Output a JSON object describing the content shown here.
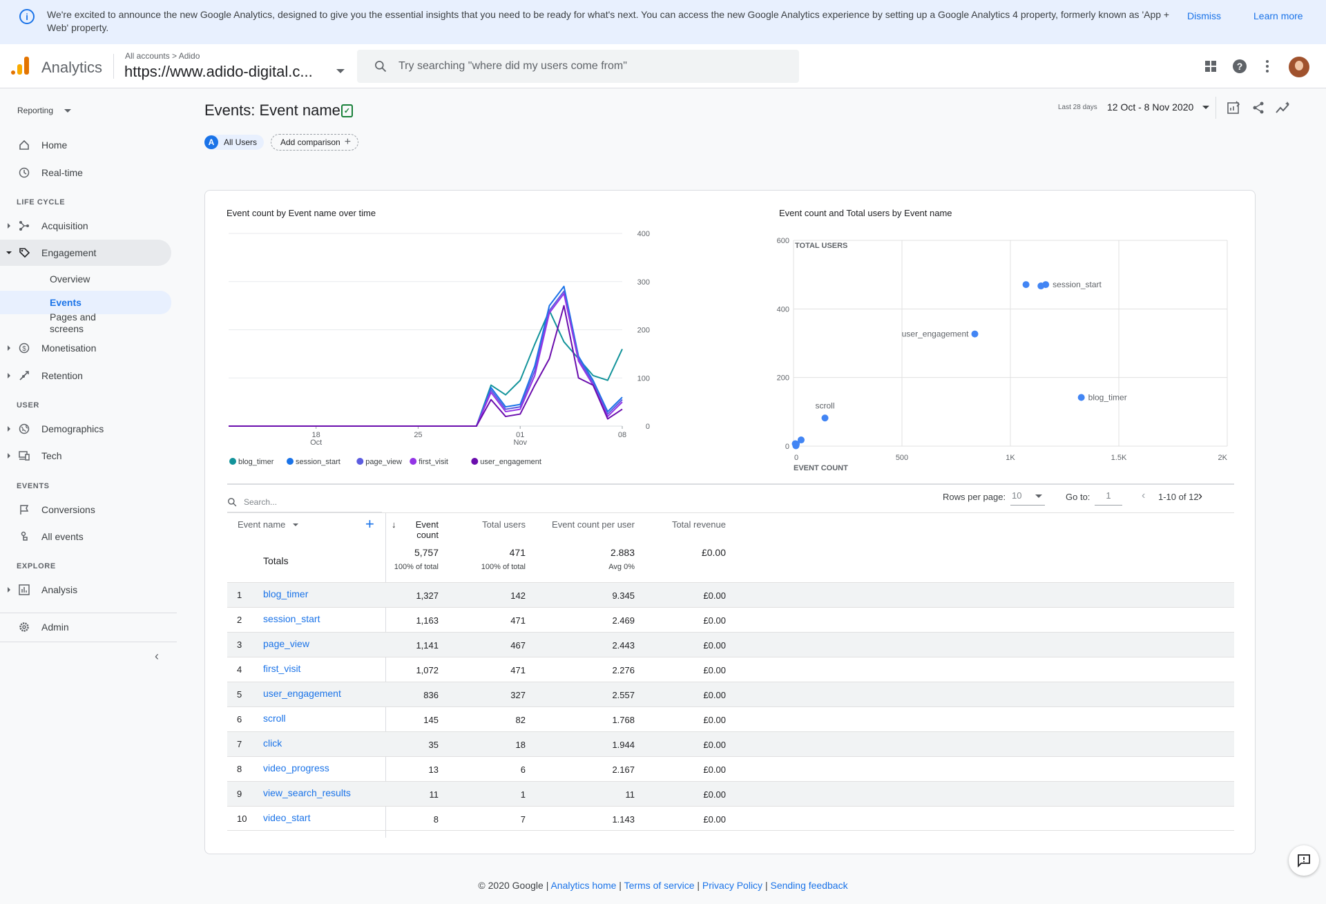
{
  "banner": {
    "message": "We're excited to announce the new Google Analytics, designed to give you the essential insights that you need to be ready for what's next. You can access the new Google Analytics experience by setting up a Google Analytics 4 property, formerly known as 'App + Web' property.",
    "dismiss": "Dismiss",
    "learn_more": "Learn more"
  },
  "topbar": {
    "app_name": "Analytics",
    "breadcrumb": "All accounts > Adido",
    "property": "https://www.adido-digital.c...",
    "search_placeholder": "Try searching \"where did my users come from\""
  },
  "sidebar": {
    "reporting": "Reporting",
    "home": "Home",
    "realtime": "Real-time",
    "section_lifecycle": "LIFE CYCLE",
    "acquisition": "Acquisition",
    "engagement": "Engagement",
    "overview": "Overview",
    "events": "Events",
    "pages_and_screens": "Pages and screens",
    "monetisation": "Monetisation",
    "retention": "Retention",
    "section_user": "USER",
    "demographics": "Demographics",
    "tech": "Tech",
    "section_events": "EVENTS",
    "conversions": "Conversions",
    "all_events": "All events",
    "section_explore": "EXPLORE",
    "analysis": "Analysis",
    "admin": "Admin"
  },
  "header": {
    "title": "Events: Event name",
    "segment_letter": "A",
    "segment": "All Users",
    "add_comparison": "Add comparison",
    "date_prefix": "Last 28 days",
    "date_range": "12 Oct - 8 Nov 2020"
  },
  "chart_data": [
    {
      "type": "line",
      "title": "Event count by Event name over time",
      "x": [
        "12 Oct",
        "13 Oct",
        "14 Oct",
        "15 Oct",
        "16 Oct",
        "17 Oct",
        "18 Oct",
        "19 Oct",
        "20 Oct",
        "21 Oct",
        "22 Oct",
        "23 Oct",
        "24 Oct",
        "25 Oct",
        "26 Oct",
        "27 Oct",
        "28 Oct",
        "29 Oct",
        "30 Oct",
        "31 Oct",
        "01 Nov",
        "02 Nov",
        "03 Nov",
        "04 Nov",
        "05 Nov",
        "06 Nov",
        "07 Nov",
        "08 Nov"
      ],
      "x_ticks": [
        {
          "label": "18",
          "sub": "Oct",
          "index": 6
        },
        {
          "label": "25",
          "sub": "",
          "index": 13
        },
        {
          "label": "01",
          "sub": "Nov",
          "index": 20
        },
        {
          "label": "08",
          "sub": "",
          "index": 27
        }
      ],
      "ylim": [
        0,
        400
      ],
      "y_ticks": [
        0,
        100,
        200,
        300,
        400
      ],
      "series": [
        {
          "name": "blog_timer",
          "color": "#12939a",
          "values": [
            0,
            0,
            0,
            0,
            0,
            0,
            0,
            0,
            0,
            0,
            0,
            0,
            0,
            0,
            0,
            0,
            0,
            0,
            85,
            65,
            95,
            170,
            240,
            175,
            140,
            105,
            95,
            160
          ]
        },
        {
          "name": "session_start",
          "color": "#1a73e8",
          "values": [
            0,
            0,
            0,
            0,
            0,
            0,
            0,
            0,
            0,
            0,
            0,
            0,
            0,
            0,
            0,
            0,
            0,
            0,
            80,
            40,
            45,
            125,
            250,
            290,
            145,
            95,
            30,
            60
          ]
        },
        {
          "name": "page_view",
          "color": "#5c5ce0",
          "values": [
            0,
            0,
            0,
            0,
            0,
            0,
            0,
            0,
            0,
            0,
            0,
            0,
            0,
            0,
            0,
            0,
            0,
            0,
            75,
            35,
            40,
            115,
            240,
            280,
            140,
            90,
            25,
            55
          ]
        },
        {
          "name": "first_visit",
          "color": "#9334e6",
          "values": [
            0,
            0,
            0,
            0,
            0,
            0,
            0,
            0,
            0,
            0,
            0,
            0,
            0,
            0,
            0,
            0,
            0,
            0,
            70,
            30,
            35,
            105,
            235,
            275,
            135,
            85,
            20,
            50
          ]
        },
        {
          "name": "user_engagement",
          "color": "#6a0dad",
          "values": [
            0,
            0,
            0,
            0,
            0,
            0,
            0,
            0,
            0,
            0,
            0,
            0,
            0,
            0,
            0,
            0,
            0,
            0,
            55,
            20,
            25,
            85,
            140,
            250,
            100,
            85,
            15,
            35
          ]
        }
      ]
    },
    {
      "type": "scatter",
      "title": "Event count and Total users by Event name",
      "xlabel": "EVENT COUNT",
      "ylabel": "TOTAL USERS",
      "xlim": [
        0,
        2000
      ],
      "ylim": [
        0,
        600
      ],
      "x_ticks": [
        "0",
        "500",
        "1K",
        "1.5K",
        "2K"
      ],
      "x_tick_values": [
        0,
        500,
        1000,
        1500,
        2000
      ],
      "y_ticks": [
        0,
        200,
        400,
        600
      ],
      "points": [
        {
          "label": "blog_timer",
          "x": 1327,
          "y": 142
        },
        {
          "label": "session_start",
          "x": 1163,
          "y": 471
        },
        {
          "label": "",
          "x": 1141,
          "y": 467
        },
        {
          "label": "",
          "x": 1072,
          "y": 471
        },
        {
          "label": "user_engagement",
          "x": 836,
          "y": 327
        },
        {
          "label": "scroll",
          "x": 145,
          "y": 82
        },
        {
          "label": "",
          "x": 35,
          "y": 18
        },
        {
          "label": "",
          "x": 13,
          "y": 6
        },
        {
          "label": "",
          "x": 11,
          "y": 1
        },
        {
          "label": "",
          "x": 8,
          "y": 7
        }
      ],
      "color": "#4285f4"
    }
  ],
  "table": {
    "search_placeholder": "Search...",
    "rows_per_page_label": "Rows per page:",
    "rows_per_page": "10",
    "goto_label": "Go to:",
    "goto_value": "1",
    "range": "1-10 of 12",
    "columns": {
      "event_name": "Event name",
      "event_count": "Event count",
      "total_users": "Total users",
      "per_user": "Event count per user",
      "revenue": "Total revenue"
    },
    "totals": {
      "label": "Totals",
      "event_count": "5,757",
      "event_count_sub": "100% of total",
      "total_users": "471",
      "total_users_sub": "100% of total",
      "per_user": "2.883",
      "per_user_sub": "Avg 0%",
      "revenue": "£0.00"
    },
    "rows": [
      {
        "n": "1",
        "name": "blog_timer",
        "count": "1,327",
        "users": "142",
        "per": "9.345",
        "rev": "£0.00"
      },
      {
        "n": "2",
        "name": "session_start",
        "count": "1,163",
        "users": "471",
        "per": "2.469",
        "rev": "£0.00"
      },
      {
        "n": "3",
        "name": "page_view",
        "count": "1,141",
        "users": "467",
        "per": "2.443",
        "rev": "£0.00"
      },
      {
        "n": "4",
        "name": "first_visit",
        "count": "1,072",
        "users": "471",
        "per": "2.276",
        "rev": "£0.00"
      },
      {
        "n": "5",
        "name": "user_engagement",
        "count": "836",
        "users": "327",
        "per": "2.557",
        "rev": "£0.00"
      },
      {
        "n": "6",
        "name": "scroll",
        "count": "145",
        "users": "82",
        "per": "1.768",
        "rev": "£0.00"
      },
      {
        "n": "7",
        "name": "click",
        "count": "35",
        "users": "18",
        "per": "1.944",
        "rev": "£0.00"
      },
      {
        "n": "8",
        "name": "video_progress",
        "count": "13",
        "users": "6",
        "per": "2.167",
        "rev": "£0.00"
      },
      {
        "n": "9",
        "name": "view_search_results",
        "count": "11",
        "users": "1",
        "per": "11",
        "rev": "£0.00"
      },
      {
        "n": "10",
        "name": "video_start",
        "count": "8",
        "users": "7",
        "per": "1.143",
        "rev": "£0.00"
      }
    ]
  },
  "footer": {
    "copyright": "© 2020 Google",
    "analytics_home": "Analytics home",
    "terms": "Terms of service",
    "privacy": "Privacy Policy",
    "feedback": "Sending feedback"
  }
}
